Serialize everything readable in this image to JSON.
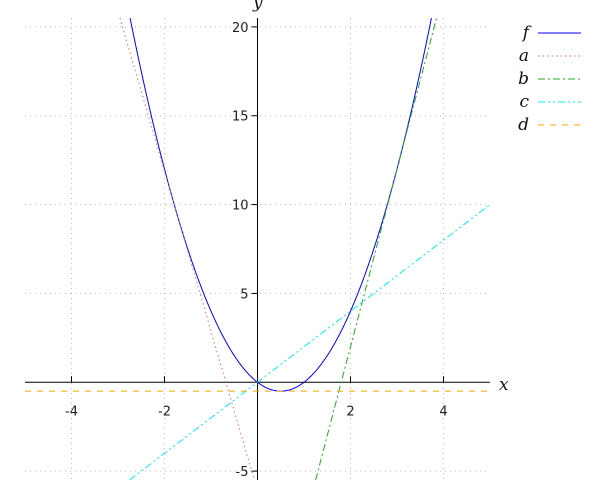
{
  "chart_data": {
    "type": "line",
    "title": "",
    "xlabel": "x",
    "ylabel": "y",
    "xlim": [
      -5,
      5
    ],
    "ylim": [
      -5.5,
      20.5
    ],
    "xticks": [
      -4,
      -2,
      2,
      4
    ],
    "yticks": [
      -5,
      5,
      10,
      15,
      20
    ],
    "grid": true,
    "legend_position": "top-right",
    "series": [
      {
        "name": "f",
        "expression": "2x^2 - 2x",
        "coef": [
          0,
          -2,
          2
        ],
        "color": "#0000ff",
        "dash": "solid"
      },
      {
        "name": "a",
        "expression": "-9x - 6.125",
        "coef": [
          -6.125,
          -9,
          0
        ],
        "color": "#ff6666",
        "dash": "dotted"
      },
      {
        "name": "b",
        "expression": "10x - 18",
        "coef": [
          -18,
          10,
          0
        ],
        "color": "#22aa22",
        "dash": "dashdot"
      },
      {
        "name": "c",
        "expression": "2x",
        "coef": [
          0,
          2,
          0
        ],
        "color": "#00eeee",
        "dash": "dashdotdot"
      },
      {
        "name": "d",
        "expression": "-0.5",
        "coef": [
          -0.5,
          0,
          0
        ],
        "color": "#ffa500",
        "dash": "dashed"
      }
    ]
  }
}
